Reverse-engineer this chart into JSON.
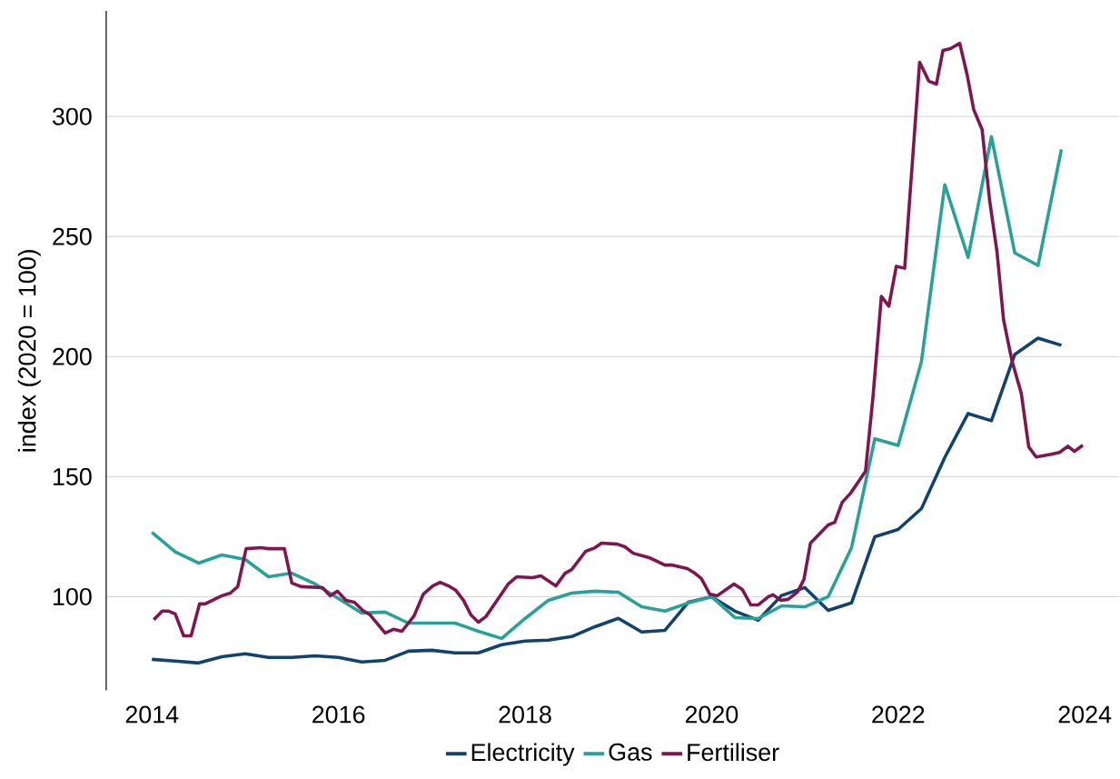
{
  "chart_data": {
    "type": "line",
    "ylabel": "index (2020 = 100)",
    "xlim": [
      2013.51,
      2024.37
    ],
    "ylim": [
      61,
      344
    ],
    "xticks": [
      2014,
      2016,
      2018,
      2020,
      2022,
      2024
    ],
    "yticks": [
      100,
      150,
      200,
      250,
      300
    ],
    "grid": "y",
    "legend": "bottom",
    "x": [
      2014.0,
      2014.25,
      2014.5,
      2014.75,
      2015.0,
      2015.25,
      2015.5,
      2015.75,
      2016.0,
      2016.25,
      2016.5,
      2016.75,
      2017.0,
      2017.25,
      2017.5,
      2017.75,
      2018.0,
      2018.25,
      2018.5,
      2018.75,
      2019.0,
      2019.25,
      2019.5,
      2019.75,
      2020.0,
      2020.25,
      2020.5,
      2020.75,
      2021.0,
      2021.25,
      2021.5,
      2021.75,
      2022.0,
      2022.25,
      2022.5,
      2022.75,
      2023.0,
      2023.25,
      2023.5,
      2023.75
    ],
    "series": [
      {
        "name": "Electricity",
        "color": "#12436d",
        "values": [
          73.9,
          73.2,
          72.4,
          75,
          76.2,
          74.7,
          74.7,
          75.4,
          74.7,
          72.8,
          73.5,
          77.3,
          77.7,
          76.6,
          76.6,
          80,
          81.5,
          81.9,
          83.4,
          87.5,
          91,
          85.3,
          86,
          97.7,
          100,
          94,
          90.2,
          100.5,
          103.8,
          94.3,
          97.4,
          125,
          128,
          136.7,
          158,
          176.3,
          173.3,
          200.9,
          207.7,
          204.7
        ]
      },
      {
        "name": "Gas",
        "color": "#28a197",
        "values": [
          126.8,
          118.7,
          114,
          117.4,
          115.5,
          108.3,
          109.8,
          105.3,
          99.2,
          93.2,
          93.6,
          89,
          89,
          89,
          85.6,
          82.6,
          90.9,
          98.5,
          101.5,
          102.3,
          101.9,
          95.8,
          94,
          97.4,
          100,
          91.3,
          90.9,
          96.2,
          95.8,
          100,
          120.4,
          165.8,
          163,
          198,
          271.6,
          241.3,
          291.6,
          243.2,
          238,
          286.3
        ]
      },
      {
        "name": "Fertiliser",
        "color": "#801650",
        "x": [
          2014.02,
          2014.11,
          2014.18,
          2014.25,
          2014.34,
          2014.42,
          2014.51,
          2014.57,
          2014.75,
          2014.84,
          2014.92,
          2015.01,
          2015.17,
          2015.25,
          2015.42,
          2015.5,
          2015.6,
          2015.83,
          2015.91,
          2015.99,
          2016.08,
          2016.17,
          2016.26,
          2016.34,
          2016.5,
          2016.59,
          2016.68,
          2016.81,
          2016.91,
          2017.01,
          2017.09,
          2017.18,
          2017.26,
          2017.34,
          2017.42,
          2017.5,
          2017.58,
          2017.72,
          2017.82,
          2017.91,
          2018.08,
          2018.17,
          2018.33,
          2018.43,
          2018.5,
          2018.65,
          2018.75,
          2018.82,
          2018.99,
          2019.07,
          2019.16,
          2019.33,
          2019.5,
          2019.57,
          2019.74,
          2019.82,
          2019.89,
          2019.98,
          2020.06,
          2020.24,
          2020.33,
          2020.42,
          2020.5,
          2020.61,
          2020.66,
          2020.74,
          2020.82,
          2020.92,
          2020.99,
          2021.06,
          2021.25,
          2021.32,
          2021.4,
          2021.49,
          2021.65,
          2021.73,
          2021.82,
          2021.9,
          2021.98,
          2022.07,
          2022.23,
          2022.33,
          2022.41,
          2022.48,
          2022.56,
          2022.66,
          2022.74,
          2022.81,
          2022.9,
          2022.98,
          2023.06,
          2023.13,
          2023.22,
          2023.32,
          2023.4,
          2023.48,
          2023.64,
          2023.73,
          2023.82,
          2023.89,
          2023.98
        ],
        "values": [
          90.4,
          94,
          94,
          92.8,
          83.7,
          83.7,
          97,
          97,
          100.4,
          101.5,
          104.2,
          120,
          120.4,
          120,
          120,
          105.7,
          104.2,
          103.8,
          100.4,
          102.3,
          98.5,
          97.7,
          94.3,
          92.4,
          84.9,
          86.4,
          85.6,
          92,
          101.1,
          104.5,
          106,
          104.5,
          102.6,
          98.5,
          92.4,
          89.4,
          91.7,
          99.6,
          105.3,
          108.3,
          107.9,
          108.7,
          104.5,
          109.8,
          111.3,
          118.9,
          120.4,
          122.3,
          121.9,
          120.8,
          118.1,
          116.3,
          113.2,
          113.2,
          111.7,
          109.8,
          107.6,
          101.1,
          100.4,
          105.3,
          103,
          96.6,
          96.6,
          100,
          100.8,
          98.5,
          98.9,
          101.9,
          107.2,
          122.3,
          129.9,
          131,
          139.3,
          143.1,
          152.2,
          183.1,
          225.1,
          221,
          237.6,
          236.8,
          322.6,
          314.7,
          313.5,
          327.5,
          328.3,
          330.5,
          317.3,
          302.9,
          294.6,
          265.2,
          243.6,
          215.3,
          198.3,
          184.7,
          162.4,
          158.2,
          159.3,
          160.1,
          162.7,
          160.5,
          163.1
        ]
      }
    ]
  }
}
